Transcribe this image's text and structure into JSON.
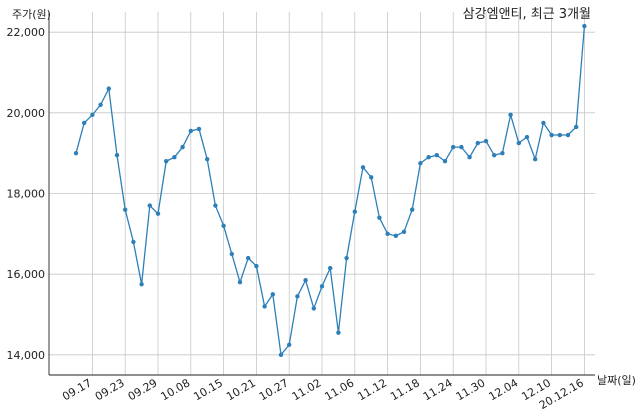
{
  "chart_data": {
    "type": "line",
    "title": "삼강엠앤티, 최근 3개월",
    "ylabel": "주가(원)",
    "xlabel": "날짜(일)",
    "ylim": [
      13500,
      22500
    ],
    "yticks": [
      14000,
      16000,
      18000,
      20000,
      22000
    ],
    "ytick_labels": [
      "14,000",
      "16,000",
      "18,000",
      "20,000",
      "22,000"
    ],
    "xtick_labels": [
      "09.17",
      "09.23",
      "09.29",
      "10.08",
      "10.15",
      "10.21",
      "10.27",
      "11.02",
      "11.06",
      "11.12",
      "11.18",
      "11.24",
      "11.30",
      "12.04",
      "12.10",
      "20.12.16"
    ],
    "xtick_index": [
      2,
      6,
      10,
      14,
      18,
      22,
      26,
      30,
      34,
      38,
      42,
      46,
      50,
      54,
      58,
      62
    ],
    "grid": true,
    "series": [
      {
        "color": "#2e7fb8",
        "values": [
          19000,
          19750,
          19950,
          20200,
          20600,
          18950,
          17600,
          16800,
          15750,
          17700,
          17500,
          18800,
          18900,
          19150,
          19550,
          19600,
          18850,
          17700,
          17200,
          16500,
          15800,
          16400,
          16200,
          15200,
          15500,
          14000,
          14250,
          15450,
          15850,
          15150,
          15700,
          16150,
          14550,
          16400,
          17550,
          18650,
          18400,
          17400,
          17000,
          16950,
          17050,
          17600,
          18750,
          18900,
          18950,
          18800,
          19150,
          19150,
          18900,
          19250,
          19300,
          18950,
          19000,
          19950,
          19250,
          19400,
          18850,
          19750,
          19450,
          19450,
          19450,
          19650,
          22150
        ]
      }
    ]
  }
}
